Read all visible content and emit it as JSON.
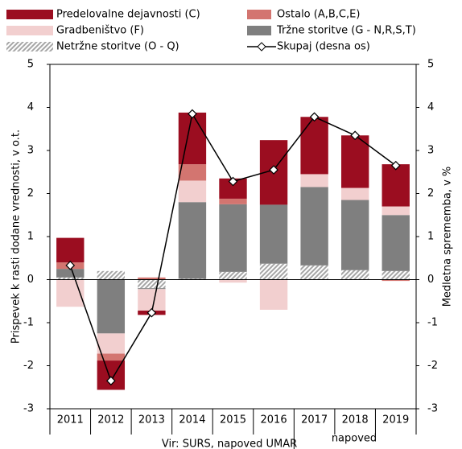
{
  "chart_data": {
    "type": "stacked_bar_line",
    "y_label": "Prispevek k rasti dodane vrednosti, v o.t.",
    "y2_label": "Medletna sprememba, v %",
    "categories": [
      "2011",
      "2012",
      "2013",
      "2014",
      "2015",
      "2016",
      "2017",
      "2018",
      "2019"
    ],
    "series": [
      {
        "name": "Netržne storitve (O - Q)",
        "color": "#a6a6a6",
        "pattern": "hatch",
        "values": [
          0.05,
          0.2,
          -0.2,
          0.02,
          0.18,
          0.37,
          0.33,
          0.22,
          0.2
        ]
      },
      {
        "name": "Tržne storitve (G - N,R,S,T)",
        "color": "#7f7f7f",
        "values": [
          0.2,
          -1.25,
          -0.02,
          1.78,
          1.57,
          1.37,
          1.82,
          1.63,
          1.3
        ]
      },
      {
        "name": "Gradbeništvo (F)",
        "color": "#f2cfcf",
        "values": [
          -0.63,
          -0.47,
          -0.5,
          0.5,
          -0.07,
          -0.7,
          0.3,
          0.28,
          0.2
        ]
      },
      {
        "name": "Ostalo (A,B,C,E)",
        "color": "#d37570",
        "values": [
          0.15,
          -0.16,
          0.05,
          0.38,
          0.13,
          0,
          0,
          0,
          -0.03
        ]
      },
      {
        "name": "Predelovalne dejavnosti (C)",
        "color": "#9b0d20",
        "values": [
          0.57,
          -0.68,
          -0.1,
          1.2,
          0.47,
          1.5,
          1.33,
          1.22,
          0.98
        ]
      },
      {
        "name": "Skupaj (desna os)",
        "color": "#000000",
        "type": "line",
        "axis": "y2",
        "values": [
          0.33,
          -2.35,
          -0.77,
          3.85,
          2.28,
          2.55,
          3.78,
          3.35,
          2.65
        ]
      }
    ],
    "ylim": [
      -3,
      5
    ],
    "yticks": [
      -3,
      -2,
      -1,
      0,
      1,
      2,
      3,
      4,
      5
    ],
    "y2lim": [
      -3,
      5
    ],
    "y2ticks": [
      -3,
      -2,
      -1,
      0,
      1,
      2,
      3,
      4,
      5
    ],
    "notes": [
      "Vir: SURS, napoved UMAR",
      "napoved"
    ]
  }
}
